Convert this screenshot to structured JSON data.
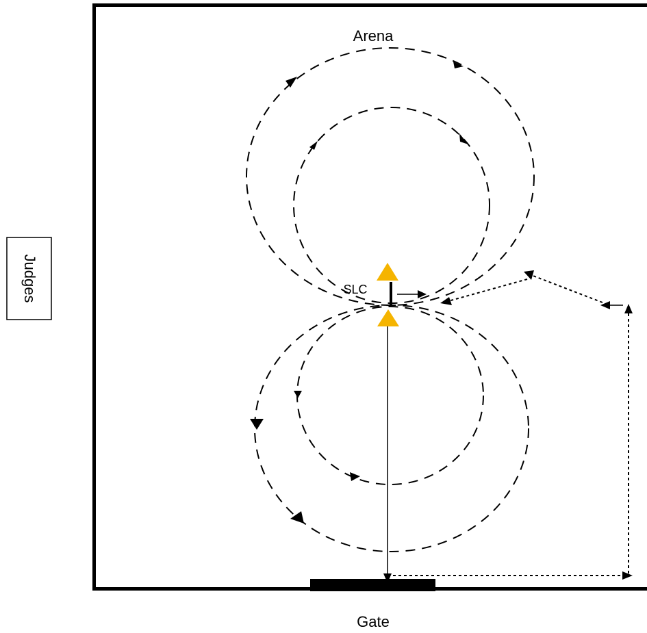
{
  "labels": {
    "arena": "Arena",
    "slc": "SLC",
    "gate": "Gate",
    "judges": "Judges"
  },
  "colors": {
    "line": "#000000",
    "cone": "#F5B400",
    "background": "#ffffff"
  },
  "icons": {
    "cone": "triangle-cone-icon",
    "arrowhead": "triangle-arrowhead-icon"
  }
}
